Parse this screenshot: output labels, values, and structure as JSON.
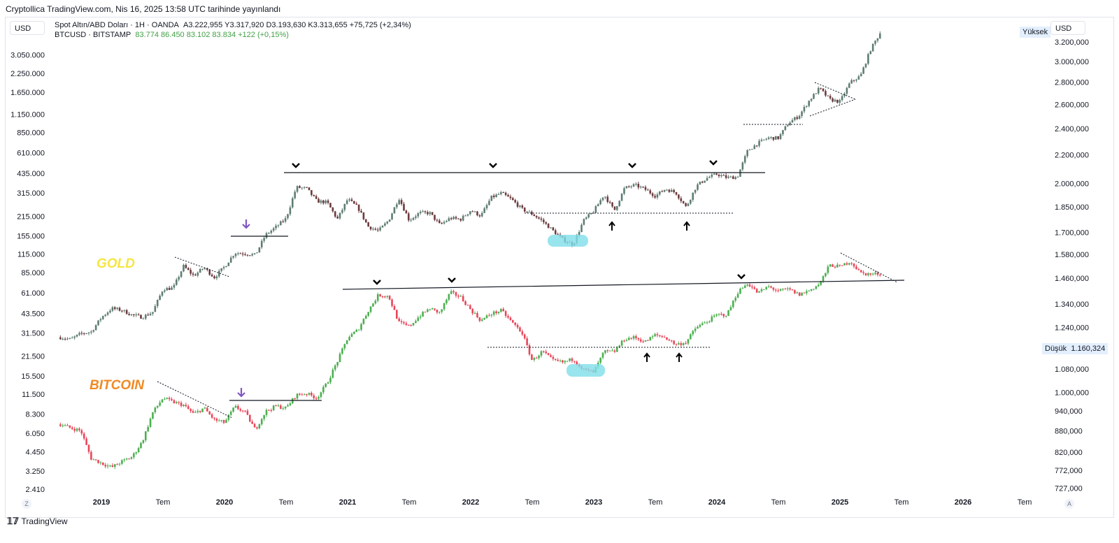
{
  "published": "Cryptollica TradingView.com, Nis 16, 2025 13:58 UTC tarihinde yayınlandı",
  "left_currency": "USD",
  "right_currency": "USD",
  "legend": [
    {
      "symbol": "Spot Altın/ABD Doları · 1H · OANDA",
      "ohlc": "A3.222,955  Y3.317,920  D3.193,630  K3.313,655  +75,725 (+2,34%)",
      "color": "#131722"
    },
    {
      "symbol": "BTCUSD · BITSTAMP",
      "ohlc": "83.774  86.450  83.102  83.834  +122 (+0,15%)",
      "color": "#43a047"
    }
  ],
  "high_tag": "Yüksek",
  "low_tag": "Düşük",
  "low_value": "1.160,324",
  "brand": "TradingView",
  "scale_buttons": {
    "left": "Z",
    "right": "A"
  },
  "chart_data": {
    "type": "candlestick",
    "time_axis_ticks": [
      "2019",
      "Tem",
      "2020",
      "Tem",
      "2021",
      "Tem",
      "2022",
      "Tem",
      "2023",
      "Tem",
      "2024",
      "Tem",
      "2025",
      "Tem",
      "2026",
      "Tem"
    ],
    "left_axis": {
      "series": "BTCUSD",
      "scale": "log",
      "ticks": [
        "3.050.000",
        "2.250.000",
        "1.650.000",
        "1.150.000",
        "850.000",
        "610.000",
        "435.000",
        "315.000",
        "215.000",
        "155.000",
        "115.000",
        "85.000",
        "61.000",
        "43.500",
        "31.500",
        "21.500",
        "15.500",
        "11.500",
        "8.300",
        "6.050",
        "4.450",
        "3.250",
        "2.410"
      ]
    },
    "right_axis": {
      "series": "XAUUSD",
      "scale": "log",
      "ticks": [
        "3.200,000",
        "3.000,000",
        "2.800,000",
        "2.600,000",
        "2.400,000",
        "2.200,000",
        "2.000,000",
        "1.850,000",
        "1.700,000",
        "1.580,000",
        "1.460,000",
        "1.340,000",
        "1.240,000",
        "1.080,000",
        "1.000,000",
        "940,000",
        "880,000",
        "820,000",
        "772,000",
        "727,000"
      ]
    },
    "labels": [
      {
        "text": "GOLD",
        "color": "#f5e642"
      },
      {
        "text": "BITCOIN",
        "color": "#f08a24"
      }
    ],
    "start_month": "2018-08",
    "series": [
      {
        "name": "GOLD",
        "axis": "right",
        "up_color": "#5f7d72",
        "down_color": "#6b3a3e",
        "monthly_close": [
          1200,
          1192,
          1215,
          1222,
          1282,
          1321,
          1313,
          1292,
          1283,
          1305,
          1409,
          1413,
          1520,
          1472,
          1513,
          1464,
          1517,
          1589,
          1585,
          1577,
          1686,
          1730,
          1781,
          1975,
          1967,
          1886,
          1879,
          1776,
          1898,
          1847,
          1734,
          1708,
          1769,
          1907,
          1770,
          1814,
          1814,
          1743,
          1783,
          1775,
          1829,
          1796,
          1909,
          1937,
          1896,
          1837,
          1807,
          1766,
          1711,
          1660,
          1633,
          1768,
          1824,
          1928,
          1827,
          1969,
          1990,
          1962,
          1919,
          1965,
          1940,
          1849,
          1983,
          2036,
          2063,
          2039,
          2044,
          2230,
          2286,
          2327,
          2326,
          2447,
          2503,
          2634,
          2744,
          2643,
          2624,
          2798,
          2858,
          3124,
          3313
        ]
      },
      {
        "name": "BITCOIN",
        "axis": "left",
        "up_color": "#4caf50",
        "down_color": "#e8465a",
        "monthly_close": [
          7000,
          6600,
          6300,
          4000,
          3700,
          3450,
          3800,
          4100,
          5300,
          8500,
          10800,
          10100,
          9600,
          8300,
          9150,
          7550,
          7200,
          9350,
          8550,
          6400,
          8650,
          9450,
          9150,
          11350,
          11650,
          10780,
          13800,
          19700,
          29000,
          33100,
          45200,
          58800,
          57700,
          37300,
          35000,
          41500,
          47100,
          43800,
          61300,
          57000,
          46200,
          38500,
          43200,
          45500,
          37700,
          31800,
          19900,
          23300,
          20000,
          19400,
          20500,
          17200,
          16500,
          23100,
          23100,
          28500,
          29200,
          27200,
          30500,
          29200,
          26000,
          27000,
          34600,
          37700,
          42300,
          42600,
          61200,
          71300,
          60700,
          67500,
          62700,
          64600,
          59000,
          63300,
          70300,
          96400,
          93400,
          102400,
          84400,
          82500,
          83834
        ]
      }
    ],
    "annotation_color": "#7e57c2",
    "highlight_color": "#80deea"
  }
}
